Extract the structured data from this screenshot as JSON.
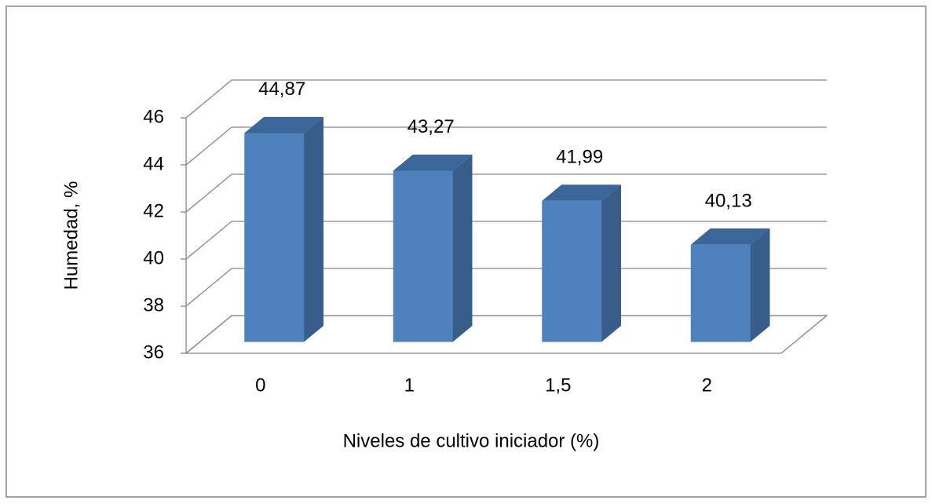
{
  "chart_data": {
    "type": "bar3d",
    "x_label": "Niveles de cultivo iniciador (%)",
    "y_label": "Humedad, %",
    "categories": [
      "0",
      "1",
      "1,5",
      "2"
    ],
    "values": [
      44.87,
      43.27,
      41.99,
      40.13
    ],
    "value_labels": [
      "44,87",
      "43,27",
      "41,99",
      "40,13"
    ],
    "color": "#4f81bd",
    "ylim": [
      36,
      46
    ],
    "yticks": [
      36,
      38,
      40,
      42,
      44,
      46
    ],
    "grid": true
  }
}
